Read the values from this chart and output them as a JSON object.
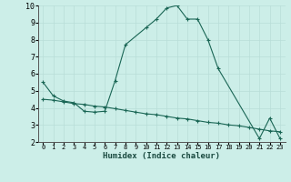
{
  "xlabel": "Humidex (Indice chaleur)",
  "background_color": "#cceee8",
  "grid_color": "#b8ddd8",
  "line_color": "#1a6655",
  "xlim": [
    -0.5,
    23.5
  ],
  "ylim": [
    2,
    10
  ],
  "yticks": [
    2,
    3,
    4,
    5,
    6,
    7,
    8,
    9,
    10
  ],
  "xticks": [
    0,
    1,
    2,
    3,
    4,
    5,
    6,
    7,
    8,
    9,
    10,
    11,
    12,
    13,
    14,
    15,
    16,
    17,
    18,
    19,
    20,
    21,
    22,
    23
  ],
  "series1_x": [
    0,
    1,
    2,
    3,
    4,
    5,
    6,
    7,
    8,
    10,
    11,
    12,
    13,
    14,
    15,
    16,
    17,
    21,
    22,
    23
  ],
  "series1_y": [
    5.5,
    4.7,
    4.4,
    4.3,
    3.8,
    3.75,
    3.8,
    5.6,
    7.7,
    8.7,
    9.2,
    9.85,
    10.0,
    9.2,
    9.2,
    8.0,
    6.3,
    2.2,
    3.4,
    2.2
  ],
  "series2_x": [
    0,
    1,
    2,
    3,
    4,
    5,
    6,
    7,
    8,
    9,
    10,
    11,
    12,
    13,
    14,
    15,
    16,
    17,
    18,
    19,
    20,
    21,
    22,
    23
  ],
  "series2_y": [
    4.5,
    4.45,
    4.35,
    4.25,
    4.2,
    4.1,
    4.05,
    3.95,
    3.85,
    3.75,
    3.65,
    3.6,
    3.5,
    3.4,
    3.35,
    3.25,
    3.15,
    3.1,
    3.0,
    2.95,
    2.85,
    2.75,
    2.65,
    2.6
  ]
}
